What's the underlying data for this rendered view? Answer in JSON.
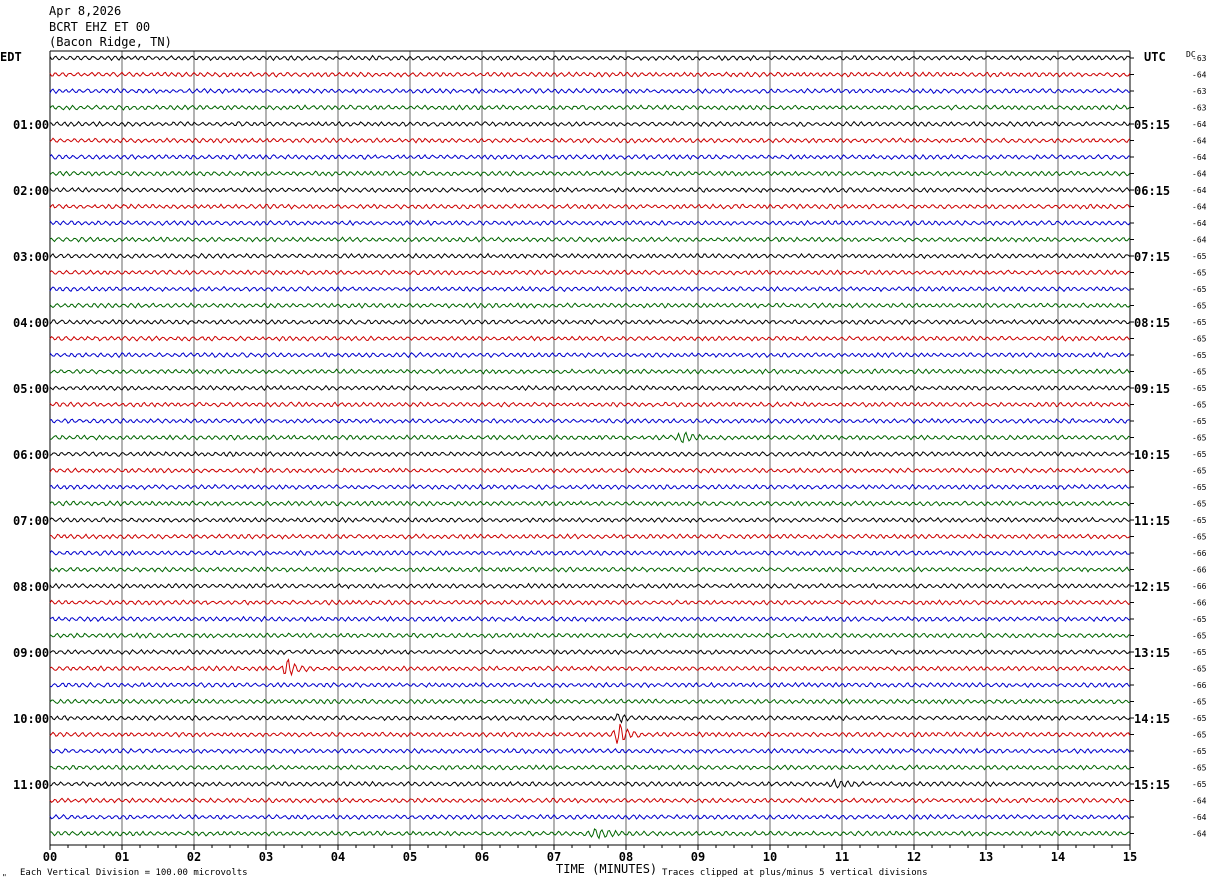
{
  "header": {
    "date": "Apr 8,2026",
    "station": "BCRT EHZ ET 00",
    "location": "(Bacon Ridge, TN)"
  },
  "left_zone": "EDT",
  "right_zone": "UTC",
  "dc_label": "DC",
  "footer": {
    "scale_note": "Each Vertical Division =  100.00 microvolts",
    "xlabel": "TIME (MINUTES)",
    "clip_note": "Traces clipped at plus/minus 5 vertical divisions",
    "corner_mark": "\""
  },
  "colors": {
    "trace_cycle": [
      "#000000",
      "#cc0000",
      "#0000cc",
      "#006600"
    ],
    "grid": "#000000",
    "text": "#000000"
  },
  "chart_data": {
    "type": "helicorder",
    "rows": 48,
    "minutes_per_row": 15,
    "xlim": [
      0,
      15
    ],
    "x_ticks": [
      "00",
      "01",
      "02",
      "03",
      "04",
      "05",
      "06",
      "07",
      "08",
      "09",
      "10",
      "11",
      "12",
      "13",
      "14",
      "15"
    ],
    "left_hour_labels": [
      {
        "row": 4,
        "label": "01:00"
      },
      {
        "row": 8,
        "label": "02:00"
      },
      {
        "row": 12,
        "label": "03:00"
      },
      {
        "row": 16,
        "label": "04:00"
      },
      {
        "row": 20,
        "label": "05:00"
      },
      {
        "row": 24,
        "label": "06:00"
      },
      {
        "row": 28,
        "label": "07:00"
      },
      {
        "row": 32,
        "label": "08:00"
      },
      {
        "row": 36,
        "label": "09:00"
      },
      {
        "row": 40,
        "label": "10:00"
      },
      {
        "row": 44,
        "label": "11:00"
      }
    ],
    "right_hour_labels": [
      {
        "row": 4,
        "label": "05:15"
      },
      {
        "row": 8,
        "label": "06:15"
      },
      {
        "row": 12,
        "label": "07:15"
      },
      {
        "row": 16,
        "label": "08:15"
      },
      {
        "row": 20,
        "label": "09:15"
      },
      {
        "row": 24,
        "label": "10:15"
      },
      {
        "row": 28,
        "label": "11:15"
      },
      {
        "row": 32,
        "label": "12:15"
      },
      {
        "row": 36,
        "label": "13:15"
      },
      {
        "row": 40,
        "label": "14:15"
      },
      {
        "row": 44,
        "label": "15:15"
      }
    ],
    "dc_offsets": [
      "-63",
      "-64",
      "-63",
      "-63",
      "-64",
      "-64",
      "-64",
      "-64",
      "-64",
      "-64",
      "-64",
      "-64",
      "-65",
      "-65",
      "-65",
      "-65",
      "-65",
      "-65",
      "-65",
      "-65",
      "-65",
      "-65",
      "-65",
      "-65",
      "-65",
      "-65",
      "-65",
      "-65",
      "-65",
      "-65",
      "-66",
      "-66",
      "-66",
      "-66",
      "-65",
      "-65",
      "-65",
      "-65",
      "-66",
      "-65",
      "-65",
      "-65",
      "-65",
      "-65",
      "-65",
      "-64",
      "-64",
      "-64"
    ],
    "events": [
      {
        "row": 23,
        "minute": 8.8,
        "amplitude": 4,
        "duration_min": 0.4
      },
      {
        "row": 37,
        "minute": 3.3,
        "amplitude": 9,
        "duration_min": 0.3
      },
      {
        "row": 40,
        "minute": 7.9,
        "amplitude": 5,
        "duration_min": 0.15
      },
      {
        "row": 41,
        "minute": 7.9,
        "amplitude": 10,
        "duration_min": 0.3
      },
      {
        "row": 44,
        "minute": 10.9,
        "amplitude": 3,
        "duration_min": 0.4
      },
      {
        "row": 47,
        "minute": 7.6,
        "amplitude": 4,
        "duration_min": 0.5
      }
    ]
  }
}
